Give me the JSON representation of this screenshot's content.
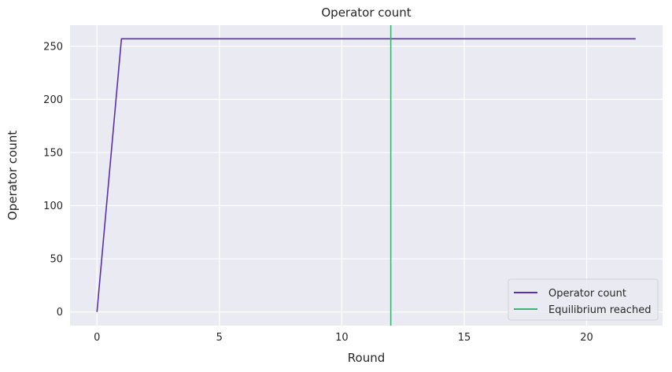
{
  "chart_data": {
    "type": "line",
    "title": "Operator count",
    "xlabel": "Round",
    "ylabel": "Operator count",
    "xlim": [
      -1.1,
      23.1
    ],
    "ylim": [
      -12.85,
      269.85
    ],
    "xticks": [
      0,
      5,
      10,
      15,
      20
    ],
    "yticks": [
      0,
      50,
      100,
      150,
      200,
      250
    ],
    "grid": true,
    "legend_position": "lower right",
    "series": [
      {
        "name": "Operator count",
        "color": "#5a30a8",
        "x": [
          0,
          1,
          2,
          3,
          4,
          5,
          6,
          7,
          8,
          9,
          10,
          11,
          12,
          13,
          14,
          15,
          16,
          17,
          18,
          19,
          20,
          21,
          22
        ],
        "y": [
          0,
          257,
          257,
          257,
          257,
          257,
          257,
          257,
          257,
          257,
          257,
          257,
          257,
          257,
          257,
          257,
          257,
          257,
          257,
          257,
          257,
          257,
          257
        ]
      }
    ],
    "vlines": [
      {
        "name": "Equilibrium reached",
        "x": 12,
        "color": "#3cb371"
      }
    ]
  }
}
